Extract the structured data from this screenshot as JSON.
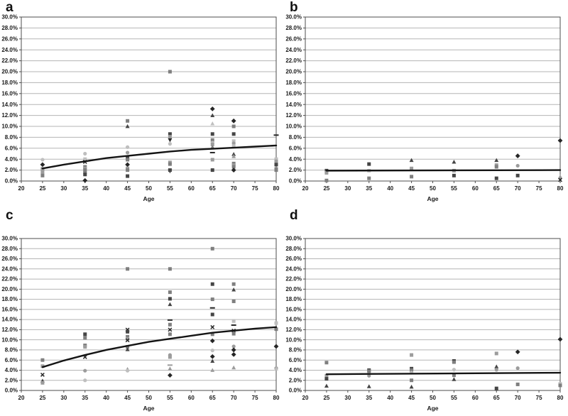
{
  "figure": {
    "background": "#ffffff"
  },
  "axes": {
    "xlabel": "Age",
    "x_tick_labels": [
      "20",
      "25",
      "30",
      "35",
      "40",
      "45",
      "50",
      "55",
      "60",
      "65",
      "70",
      "75",
      "80"
    ],
    "xlim": [
      20,
      80
    ],
    "y_tick_labels": [
      "0.0%",
      "2.0%",
      "4.0%",
      "6.0%",
      "8.0%",
      "10.0%",
      "12.0%",
      "14.0%",
      "16.0%",
      "18.0%",
      "20.0%",
      "22.0%",
      "24.0%",
      "26.0%",
      "28.0%",
      "30.0%"
    ],
    "ylim_pct": [
      0,
      30
    ],
    "y_step_pct": 2,
    "grid_on": true,
    "grid_color": "#b5b5b5",
    "axis_color": "#4d4d4d",
    "trend_color": "#141414"
  },
  "marker_colors": {
    "black": "#262626",
    "dark": "#454545",
    "mid": "#7f7f7f",
    "light": "#9c9c9c",
    "lighter": "#bfbfbf"
  },
  "chart_data": [
    {
      "type": "scatter",
      "label": "a",
      "trend": [
        [
          25,
          2.3
        ],
        [
          30,
          3.0
        ],
        [
          35,
          3.6
        ],
        [
          40,
          4.2
        ],
        [
          45,
          4.6
        ],
        [
          50,
          5.0
        ],
        [
          55,
          5.4
        ],
        [
          60,
          5.7
        ],
        [
          65,
          5.9
        ],
        [
          70,
          6.1
        ],
        [
          75,
          6.3
        ],
        [
          80,
          6.5
        ]
      ],
      "points": [
        [
          25,
          3.9,
          "circle",
          "lighter"
        ],
        [
          25,
          3.0,
          "diamond",
          "black"
        ],
        [
          25,
          2.2,
          "square",
          "mid"
        ],
        [
          25,
          2.0,
          "circle",
          "light"
        ],
        [
          25,
          1.6,
          "square",
          "light"
        ],
        [
          25,
          1.0,
          "square",
          "mid"
        ],
        [
          35,
          5.0,
          "circle",
          "lighter"
        ],
        [
          35,
          4.0,
          "square",
          "lighter"
        ],
        [
          35,
          3.5,
          "x",
          "black"
        ],
        [
          35,
          2.6,
          "square",
          "mid"
        ],
        [
          35,
          2.3,
          "square",
          "light"
        ],
        [
          35,
          2.0,
          "square",
          "mid"
        ],
        [
          35,
          1.6,
          "square",
          "mid"
        ],
        [
          35,
          1.2,
          "square",
          "dark"
        ],
        [
          35,
          0.1,
          "diamond",
          "black"
        ],
        [
          45,
          11.0,
          "square",
          "mid"
        ],
        [
          45,
          10.0,
          "triangle",
          "dark"
        ],
        [
          45,
          6.2,
          "circle",
          "lighter"
        ],
        [
          45,
          5.2,
          "circle",
          "light"
        ],
        [
          45,
          4.2,
          "square",
          "dark"
        ],
        [
          45,
          3.9,
          "square",
          "mid"
        ],
        [
          45,
          3.0,
          "diamond",
          "black"
        ],
        [
          45,
          2.3,
          "square",
          "light"
        ],
        [
          45,
          2.0,
          "square",
          "mid"
        ],
        [
          45,
          0.9,
          "square",
          "dark"
        ],
        [
          55,
          20.0,
          "square",
          "mid"
        ],
        [
          55,
          8.6,
          "square",
          "dark"
        ],
        [
          55,
          8.1,
          "square",
          "light"
        ],
        [
          55,
          7.5,
          "triangle-down",
          "black"
        ],
        [
          55,
          6.8,
          "circle",
          "lighter"
        ],
        [
          55,
          3.4,
          "square",
          "light"
        ],
        [
          55,
          3.1,
          "square",
          "mid"
        ],
        [
          55,
          2.0,
          "square",
          "dark"
        ],
        [
          55,
          1.8,
          "triangle-down",
          "dark"
        ],
        [
          65,
          13.2,
          "diamond",
          "black"
        ],
        [
          65,
          12.0,
          "triangle",
          "dark"
        ],
        [
          65,
          10.5,
          "triangle",
          "lighter"
        ],
        [
          65,
          8.6,
          "square",
          "dark"
        ],
        [
          65,
          7.5,
          "square",
          "mid"
        ],
        [
          65,
          7.0,
          "circle",
          "lighter"
        ],
        [
          65,
          6.7,
          "square",
          "light"
        ],
        [
          65,
          6.2,
          "triangle",
          "mid"
        ],
        [
          65,
          5.2,
          "dash",
          "black"
        ],
        [
          65,
          3.9,
          "square",
          "light"
        ],
        [
          65,
          2.0,
          "square",
          "dark"
        ],
        [
          70,
          11.0,
          "diamond",
          "black"
        ],
        [
          70,
          10.0,
          "square",
          "mid"
        ],
        [
          70,
          8.6,
          "square",
          "dark"
        ],
        [
          70,
          7.3,
          "square",
          "lighter"
        ],
        [
          70,
          6.9,
          "circle",
          "light"
        ],
        [
          70,
          6.4,
          "square",
          "lighter"
        ],
        [
          70,
          4.9,
          "triangle",
          "dark"
        ],
        [
          70,
          4.5,
          "triangle",
          "light"
        ],
        [
          70,
          3.2,
          "square",
          "mid"
        ],
        [
          70,
          2.9,
          "square",
          "light"
        ],
        [
          70,
          2.6,
          "square",
          "mid"
        ],
        [
          70,
          2.0,
          "diamond",
          "black"
        ],
        [
          80,
          8.4,
          "dash",
          "black"
        ],
        [
          80,
          4.0,
          "square",
          "lighter"
        ],
        [
          80,
          3.6,
          "square",
          "light"
        ],
        [
          80,
          3.0,
          "square",
          "dark"
        ],
        [
          80,
          2.2,
          "square",
          "mid"
        ],
        [
          80,
          2.0,
          "square",
          "mid"
        ]
      ]
    },
    {
      "type": "scatter",
      "label": "b",
      "trend": [
        [
          25,
          1.9
        ],
        [
          80,
          2.0
        ]
      ],
      "points": [
        [
          25,
          1.9,
          "square",
          "dark"
        ],
        [
          25,
          1.5,
          "square",
          "light"
        ],
        [
          25,
          0.1,
          "square",
          "mid"
        ],
        [
          35,
          3.1,
          "square",
          "dark"
        ],
        [
          35,
          1.9,
          "square",
          "lighter"
        ],
        [
          35,
          0.5,
          "square",
          "mid"
        ],
        [
          45,
          3.8,
          "triangle",
          "dark"
        ],
        [
          45,
          2.3,
          "square",
          "light"
        ],
        [
          45,
          0.8,
          "square",
          "mid"
        ],
        [
          55,
          3.5,
          "triangle",
          "dark"
        ],
        [
          55,
          1.9,
          "square",
          "light"
        ],
        [
          55,
          1.0,
          "square",
          "dark"
        ],
        [
          65,
          3.8,
          "triangle",
          "dark"
        ],
        [
          65,
          2.9,
          "square",
          "light"
        ],
        [
          65,
          2.6,
          "square",
          "mid"
        ],
        [
          65,
          0.5,
          "square",
          "dark"
        ],
        [
          70,
          4.6,
          "diamond",
          "black"
        ],
        [
          70,
          2.8,
          "circle",
          "light"
        ],
        [
          70,
          1.0,
          "square",
          "dark"
        ],
        [
          80,
          7.4,
          "diamond",
          "black"
        ],
        [
          80,
          0.8,
          "triangle",
          "light"
        ],
        [
          80,
          0.2,
          "x",
          "black"
        ]
      ]
    },
    {
      "type": "scatter",
      "label": "c",
      "trend": [
        [
          25,
          4.6
        ],
        [
          30,
          5.9
        ],
        [
          35,
          7.0
        ],
        [
          40,
          8.0
        ],
        [
          45,
          8.8
        ],
        [
          50,
          9.6
        ],
        [
          55,
          10.2
        ],
        [
          60,
          10.8
        ],
        [
          65,
          11.4
        ],
        [
          70,
          11.8
        ],
        [
          75,
          12.2
        ],
        [
          80,
          12.5
        ]
      ],
      "points": [
        [
          25,
          6.0,
          "square",
          "mid"
        ],
        [
          25,
          4.8,
          "square",
          "light"
        ],
        [
          25,
          3.1,
          "x",
          "black"
        ],
        [
          25,
          1.9,
          "triangle",
          "dark"
        ],
        [
          25,
          1.5,
          "square",
          "light"
        ],
        [
          35,
          11.1,
          "square",
          "dark"
        ],
        [
          35,
          10.4,
          "square",
          "mid"
        ],
        [
          35,
          8.9,
          "square",
          "mid"
        ],
        [
          35,
          8.6,
          "square",
          "light"
        ],
        [
          35,
          6.6,
          "x",
          "black"
        ],
        [
          35,
          3.9,
          "circle",
          "light"
        ],
        [
          35,
          2.0,
          "circle",
          "lighter"
        ],
        [
          45,
          24.0,
          "square",
          "mid"
        ],
        [
          45,
          12.0,
          "x",
          "black"
        ],
        [
          45,
          11.6,
          "square",
          "dark"
        ],
        [
          45,
          10.6,
          "square",
          "mid"
        ],
        [
          45,
          10.2,
          "square",
          "light"
        ],
        [
          45,
          9.9,
          "x",
          "black"
        ],
        [
          45,
          8.6,
          "square",
          "mid"
        ],
        [
          45,
          8.1,
          "triangle",
          "dark"
        ],
        [
          45,
          4.2,
          "triangle",
          "light"
        ],
        [
          45,
          3.9,
          "circle",
          "lighter"
        ],
        [
          55,
          24.0,
          "square",
          "mid"
        ],
        [
          55,
          19.4,
          "square",
          "mid"
        ],
        [
          55,
          18.1,
          "square",
          "dark"
        ],
        [
          55,
          17.0,
          "triangle",
          "dark"
        ],
        [
          55,
          13.9,
          "dash",
          "black"
        ],
        [
          55,
          13.0,
          "square",
          "mid"
        ],
        [
          55,
          12.0,
          "x",
          "black"
        ],
        [
          55,
          11.1,
          "square",
          "mid"
        ],
        [
          55,
          7.0,
          "circle",
          "light"
        ],
        [
          55,
          6.6,
          "square",
          "light"
        ],
        [
          55,
          5.0,
          "dash",
          "light"
        ],
        [
          55,
          4.3,
          "triangle",
          "light"
        ],
        [
          55,
          3.0,
          "diamond",
          "black"
        ],
        [
          65,
          28.0,
          "square",
          "mid"
        ],
        [
          65,
          21.0,
          "square",
          "dark"
        ],
        [
          65,
          18.0,
          "square",
          "mid"
        ],
        [
          65,
          16.3,
          "dash",
          "black"
        ],
        [
          65,
          15.0,
          "square",
          "dark"
        ],
        [
          65,
          12.5,
          "x",
          "black"
        ],
        [
          65,
          11.1,
          "square",
          "mid"
        ],
        [
          65,
          9.8,
          "diamond",
          "black"
        ],
        [
          65,
          7.9,
          "circle",
          "lighter"
        ],
        [
          65,
          6.7,
          "diamond",
          "black"
        ],
        [
          65,
          5.8,
          "triangle",
          "dark"
        ],
        [
          65,
          4.0,
          "triangle",
          "light"
        ],
        [
          70,
          21.0,
          "square",
          "mid"
        ],
        [
          70,
          19.9,
          "triangle",
          "dark"
        ],
        [
          70,
          17.6,
          "square",
          "mid"
        ],
        [
          70,
          13.7,
          "square",
          "lighter"
        ],
        [
          70,
          12.9,
          "dash",
          "black"
        ],
        [
          70,
          11.8,
          "x",
          "black"
        ],
        [
          70,
          11.2,
          "square",
          "mid"
        ],
        [
          70,
          8.7,
          "circle",
          "light"
        ],
        [
          70,
          8.0,
          "diamond",
          "black"
        ],
        [
          70,
          7.1,
          "diamond",
          "black"
        ],
        [
          70,
          4.5,
          "triangle",
          "light"
        ],
        [
          80,
          13.3,
          "square",
          "lighter"
        ],
        [
          80,
          12.1,
          "square",
          "mid"
        ],
        [
          80,
          8.7,
          "diamond",
          "black"
        ],
        [
          80,
          4.4,
          "circle",
          "light"
        ],
        [
          80,
          4.3,
          "triangle",
          "lighter"
        ]
      ]
    },
    {
      "type": "scatter",
      "label": "d",
      "trend": [
        [
          25,
          3.2
        ],
        [
          80,
          3.5
        ]
      ],
      "points": [
        [
          25,
          5.5,
          "square",
          "mid"
        ],
        [
          25,
          2.9,
          "square",
          "light"
        ],
        [
          25,
          2.3,
          "square",
          "dark"
        ],
        [
          25,
          0.9,
          "triangle",
          "dark"
        ],
        [
          35,
          4.0,
          "square",
          "dark"
        ],
        [
          35,
          3.8,
          "square",
          "mid"
        ],
        [
          35,
          2.9,
          "circle",
          "light"
        ],
        [
          35,
          0.8,
          "triangle",
          "dark"
        ],
        [
          45,
          7.0,
          "square",
          "light"
        ],
        [
          45,
          4.3,
          "square",
          "dark"
        ],
        [
          45,
          4.0,
          "square",
          "mid"
        ],
        [
          45,
          3.5,
          "circle",
          "lighter"
        ],
        [
          45,
          2.0,
          "square",
          "mid"
        ],
        [
          45,
          0.7,
          "triangle",
          "dark"
        ],
        [
          55,
          5.8,
          "square",
          "black"
        ],
        [
          55,
          5.6,
          "square",
          "mid"
        ],
        [
          55,
          4.1,
          "circle",
          "lighter"
        ],
        [
          55,
          3.0,
          "square",
          "mid"
        ],
        [
          55,
          2.2,
          "triangle",
          "dark"
        ],
        [
          65,
          7.3,
          "square",
          "light"
        ],
        [
          65,
          4.7,
          "triangle",
          "dark"
        ],
        [
          65,
          4.1,
          "circle",
          "light"
        ],
        [
          65,
          0.4,
          "square",
          "dark"
        ],
        [
          70,
          7.6,
          "diamond",
          "black"
        ],
        [
          70,
          4.4,
          "circle",
          "light"
        ],
        [
          70,
          1.2,
          "square",
          "mid"
        ],
        [
          80,
          10.1,
          "diamond",
          "black"
        ],
        [
          80,
          1.3,
          "square",
          "lighter"
        ],
        [
          80,
          1.0,
          "square",
          "mid"
        ]
      ]
    }
  ]
}
